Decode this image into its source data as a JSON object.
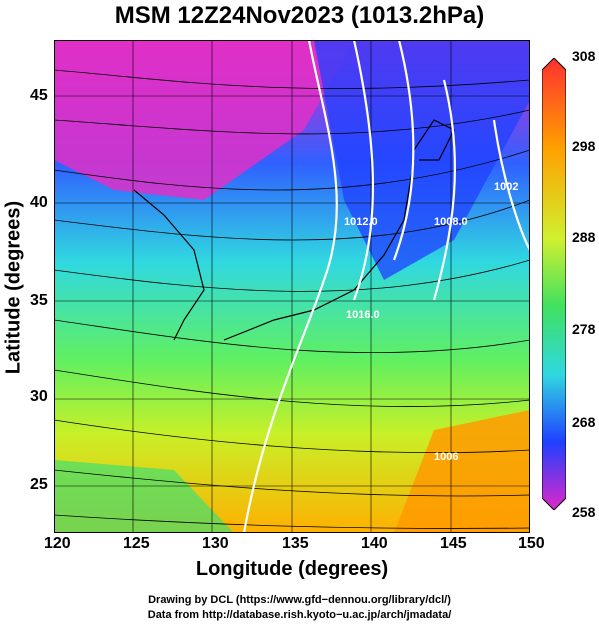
{
  "title": "MSM 12Z24Nov2023 (1013.2hPa)",
  "xlabel": "Longitude (degrees)",
  "ylabel": "Latitude (degrees)",
  "x_ticks": [
    "120",
    "125",
    "130",
    "135",
    "140",
    "145",
    "150"
  ],
  "y_ticks": [
    "25",
    "30",
    "35",
    "40",
    "45"
  ],
  "colorbar": {
    "ticks": [
      "308",
      "298",
      "288",
      "278",
      "268",
      "258"
    ],
    "unit_hint": ""
  },
  "contour_labels": [
    "1016.0",
    "1012.0",
    "1008.0",
    "1002",
    "1006"
  ],
  "credits": {
    "line1": "Drawing by DCL (https://www.gfd−dennou.org/library/dcl/)",
    "line2": "Data from http://database.rish.kyoto−u.ac.jp/arch/jmadata/"
  },
  "colors": {
    "cold": "#e020c0",
    "mid": "#30d8ff",
    "warm": "#ffa000",
    "hot": "#ff3030"
  }
}
